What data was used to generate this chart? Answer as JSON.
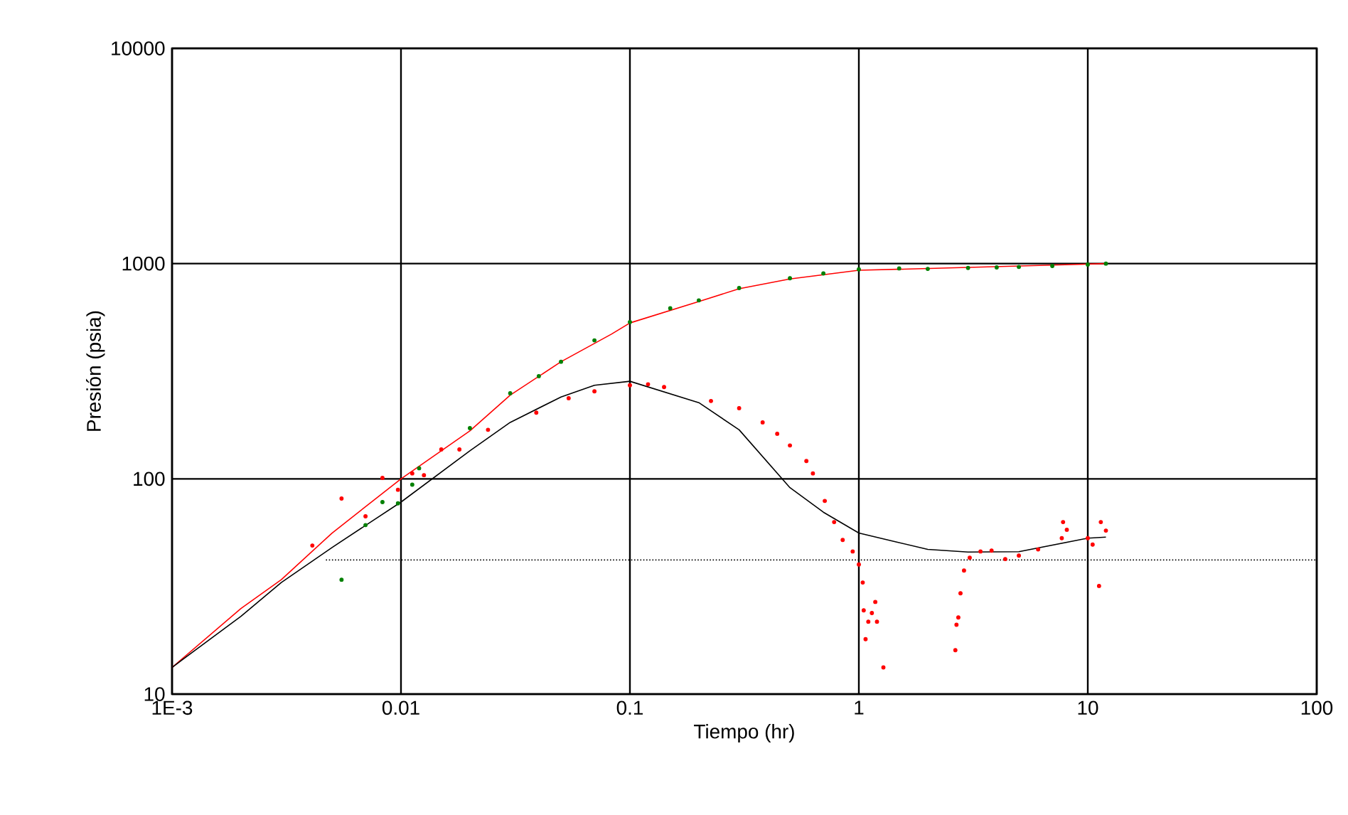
{
  "chart_data": {
    "type": "line",
    "xlabel": "Tiempo (hr)",
    "ylabel": "Presión (psia)",
    "log": "xy",
    "grid": true,
    "xlim": [
      0.001,
      100
    ],
    "ylim": [
      10,
      10000
    ],
    "xticks": [
      {
        "value": 0.001,
        "label": "1E-3"
      },
      0.01,
      0.1,
      1,
      10,
      100
    ],
    "yticks": [
      10,
      100,
      1000,
      10000
    ],
    "series": [
      {
        "type": "scatter",
        "marker": "circle",
        "color": "#008000",
        "x": [
          0.0055,
          0.007,
          0.0083,
          0.0097,
          0.0112,
          0.012,
          0.015,
          0.02,
          0.03,
          0.04,
          0.05,
          0.07,
          0.1,
          0.15,
          0.2,
          0.3,
          0.5,
          0.7,
          1,
          1.5,
          2,
          3,
          4,
          5,
          7,
          10,
          12
        ],
        "values": [
          34,
          61,
          78,
          77,
          94,
          112,
          null,
          172,
          250,
          300,
          350,
          440,
          535,
          620,
          675,
          770,
          855,
          900,
          940,
          950,
          945,
          955,
          960,
          965,
          975,
          990,
          1000
        ]
      },
      {
        "marker": "none",
        "line_style": "solid",
        "color": "#ff0000",
        "x": [
          0.001,
          0.002,
          0.003,
          0.005,
          0.01,
          0.02,
          0.03,
          0.05,
          0.083,
          0.1,
          0.2,
          0.3,
          0.5,
          1,
          3,
          12
        ],
        "values": [
          13.3,
          25,
          34,
          56,
          100,
          167,
          245,
          350,
          470,
          530,
          667,
          764,
          849,
          931,
          960,
          1000
        ]
      },
      {
        "marker": "none",
        "line_style": "solid",
        "color": "#000000",
        "x": [
          0.001,
          0.002,
          0.003,
          0.005,
          0.01,
          0.02,
          0.03,
          0.05,
          0.07,
          0.1,
          0.2,
          0.3,
          0.5,
          0.7,
          1,
          2,
          3,
          5,
          10,
          12
        ],
        "values": [
          13.3,
          23,
          33,
          48,
          78,
          135,
          183,
          240,
          272,
          284,
          226,
          169,
          91,
          70,
          56,
          47,
          45.7,
          45.9,
          53,
          53.6
        ]
      },
      {
        "type": "scatter",
        "marker": "circle",
        "color": "#ff0000",
        "x": [
          0.0041,
          0.0055,
          0.007,
          0.0083,
          0.0097,
          0.0112,
          0.0126,
          0.015,
          0.018,
          0.024,
          0.039,
          0.054,
          0.07,
          0.1,
          0.12,
          0.141,
          0.226,
          0.3,
          0.38,
          0.44,
          0.5,
          0.59,
          0.63,
          0.71,
          0.78,
          0.85,
          0.94,
          1.0,
          1.04,
          1.05,
          1.07,
          1.1,
          1.14,
          1.18,
          1.2,
          1.28,
          2.64,
          2.67,
          2.72,
          2.78,
          2.88,
          3.05,
          3.4,
          3.8,
          4.36,
          5.0,
          6.07,
          7.7,
          7.8,
          8.1,
          10,
          10.5,
          11.2,
          11.4,
          12
        ],
        "values": [
          49,
          81,
          67,
          101,
          89,
          106,
          104,
          137,
          137,
          169,
          203,
          237,
          255,
          272,
          275,
          267,
          230,
          213,
          183,
          162,
          143,
          121,
          106,
          79,
          63,
          52,
          46,
          40,
          33,
          24.5,
          18,
          21.7,
          23.8,
          26.8,
          21.7,
          13.3,
          16,
          21,
          22.7,
          29.4,
          37.5,
          43,
          46,
          46.4,
          42.4,
          44,
          47,
          53,
          63,
          58,
          53,
          49.5,
          31.8,
          63,
          57.5
        ]
      },
      {
        "marker": "none",
        "line_style": "dotted",
        "color": "#000000",
        "x": [
          0.0047,
          100
        ],
        "values": [
          42,
          42
        ]
      }
    ]
  }
}
